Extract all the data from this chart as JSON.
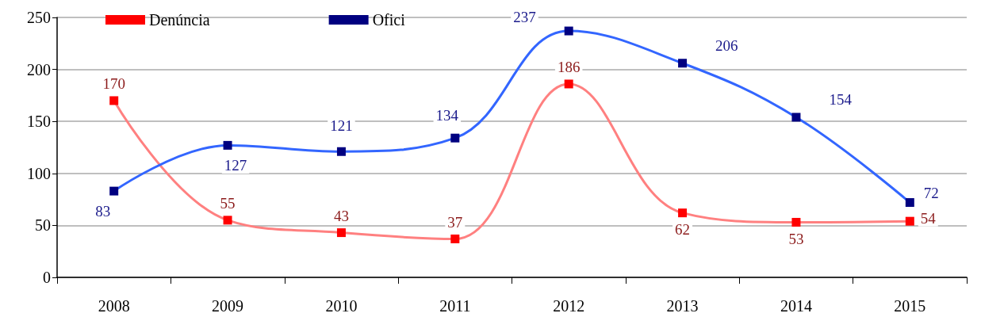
{
  "chart_data": {
    "type": "line",
    "categories": [
      "2008",
      "2009",
      "2010",
      "2011",
      "2012",
      "2013",
      "2014",
      "2015"
    ],
    "series": [
      {
        "name": "Denúncia",
        "color": "#ff8080",
        "values": [
          170,
          55,
          43,
          37,
          186,
          62,
          53,
          54
        ]
      },
      {
        "name": "Ofici",
        "color": "#3366ff",
        "values": [
          83,
          127,
          121,
          134,
          237,
          206,
          154,
          72
        ]
      }
    ],
    "ylim": [
      0,
      250
    ],
    "yticks": [
      0,
      50,
      100,
      150,
      200,
      250
    ],
    "grid": "y",
    "legend": "top left",
    "marker": "square",
    "line_style": "solid",
    "data_labels": true
  }
}
